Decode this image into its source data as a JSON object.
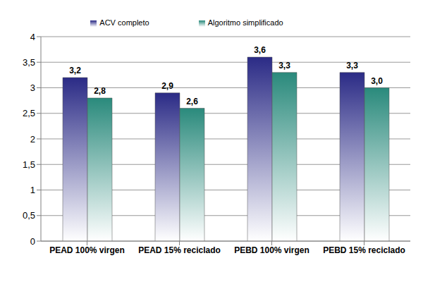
{
  "chart_data": {
    "type": "bar",
    "categories": [
      "PEAD 100% virgen",
      "PEAD 15% reciclado",
      "PEBD 100% virgen",
      "PEBD 15% reciclado"
    ],
    "series": [
      {
        "name": "ACV completo",
        "color": "#2b2b86",
        "values": [
          3.2,
          2.9,
          3.6,
          3.3
        ],
        "value_labels": [
          "3,2",
          "2,9",
          "3,6",
          "3,3"
        ]
      },
      {
        "name": "Algoritmo simplificado",
        "color": "#2a8a7c",
        "values": [
          2.8,
          2.6,
          3.3,
          3.0
        ],
        "value_labels": [
          "2,8",
          "2,6",
          "3,3",
          "3,0"
        ]
      }
    ],
    "ylim": [
      0,
      4
    ],
    "yticks": [
      0,
      {
        "value": 0.5,
        "label": "0,5"
      },
      1,
      {
        "value": 1.5,
        "label": "1,5"
      },
      2,
      {
        "value": 2.5,
        "label": "2,5"
      },
      3,
      {
        "value": 3.5,
        "label": "3,5"
      },
      4
    ],
    "grid": true,
    "legend": "top",
    "data_labels": true
  }
}
